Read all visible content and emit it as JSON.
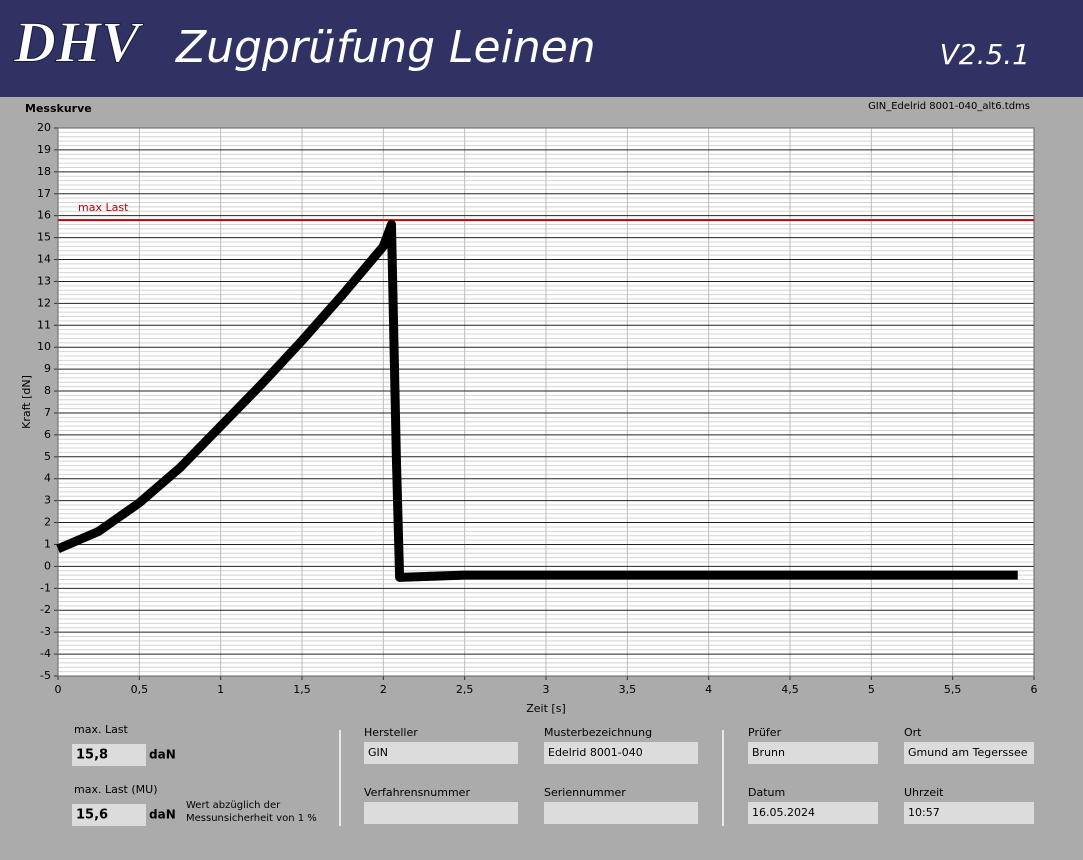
{
  "header": {
    "logo": "DHV",
    "title": "Zugprüfung Leinen",
    "version": "V2.5.1"
  },
  "chart_data": {
    "type": "line",
    "title": "Messkurve",
    "subtitle": "GIN_Edelrid 8001-040_alt6.tdms",
    "x_label": "Zeit [s]",
    "y_label": "Kraft [dN]",
    "x": [
      0,
      0.25,
      0.5,
      0.75,
      1,
      1.25,
      1.5,
      1.75,
      2,
      2.05,
      2.08,
      2.1,
      2.5,
      3,
      4,
      5,
      5.9
    ],
    "values": [
      0.8,
      1.6,
      2.9,
      4.5,
      6.4,
      8.3,
      10.3,
      12.4,
      14.6,
      15.6,
      5,
      -0.5,
      -0.4,
      -0.4,
      -0.4,
      -0.4,
      -0.4
    ],
    "color": "#000000",
    "xlim": [
      0,
      6
    ],
    "ylim": [
      -5,
      20
    ],
    "xticks": [
      0,
      {
        "value": 0.5,
        "label": "0,5"
      },
      1,
      {
        "value": 1.5,
        "label": "1,5"
      },
      2,
      {
        "value": 2.5,
        "label": "2,5"
      },
      3,
      {
        "value": 3.5,
        "label": "3,5"
      },
      4,
      {
        "value": 4.5,
        "label": "4,5"
      },
      5,
      {
        "value": 5.5,
        "label": "5,5"
      },
      6
    ],
    "yticks": [
      -5,
      -4,
      -3,
      -2,
      -1,
      0,
      1,
      2,
      3,
      4,
      5,
      6,
      7,
      8,
      9,
      10,
      11,
      12,
      13,
      14,
      15,
      16,
      17,
      18,
      19,
      20
    ],
    "grid": true,
    "annotations": [
      {
        "text": "max Last",
        "y": 15.8,
        "color": "#c00000"
      }
    ]
  },
  "panel": {
    "max_last": {
      "label": "max. Last",
      "value": "15,8",
      "unit": "daN"
    },
    "max_last_mu": {
      "label": "max. Last (MU)",
      "value": "15,6",
      "unit": "daN",
      "note": [
        "Wert abzüglich der",
        "Messunsicherheit von 1 %"
      ]
    },
    "fields": [
      {
        "label": "Hersteller",
        "value": "GIN"
      },
      {
        "label": "Musterbezeichnung",
        "value": "Edelrid 8001-040"
      },
      {
        "label": "Verfahrensnummer"
      },
      {
        "label": "Seriennummer"
      },
      {
        "label": "Prüfer",
        "value": "Brunn"
      },
      {
        "label": "Ort",
        "value": "Gmund am Tegerssee"
      },
      {
        "label": "Datum",
        "value": "16.05.2024"
      },
      {
        "label": "Uhrzeit",
        "value": "10:57"
      }
    ]
  }
}
